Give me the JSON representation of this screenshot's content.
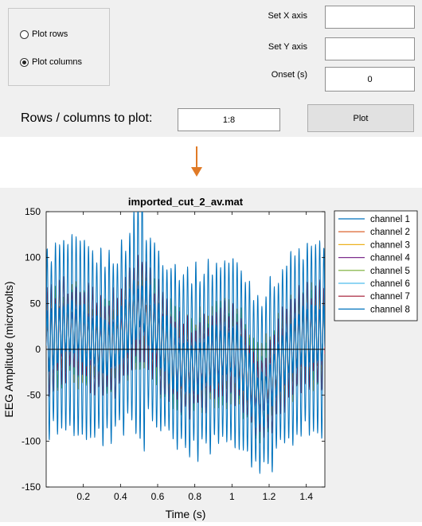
{
  "controls": {
    "radio_rows_label": "Plot rows",
    "radio_columns_label": "Plot columns",
    "selected": "columns",
    "set_x_label": "Set X axis",
    "set_x_value": "",
    "set_y_label": "Set Y axis",
    "set_y_value": "",
    "onset_label": "Onset (s)",
    "onset_value": "0",
    "rows_cols_label": "Rows / columns to plot:",
    "rows_cols_value": "1:8",
    "plot_button": "Plot"
  },
  "colors": {
    "arrow": "#e07a26",
    "panel_bg": "#f0f0f0"
  },
  "chart_data": {
    "type": "line",
    "title": "imported_cut_2_av.mat",
    "xlabel": "Time (s)",
    "ylabel": "EEG Amplitude (microvolts)",
    "xlim": [
      0,
      1.5
    ],
    "ylim": [
      -150,
      150
    ],
    "xticks": [
      0.2,
      0.4,
      0.6,
      0.8,
      1,
      1.2,
      1.4
    ],
    "xtick_labels": [
      "0.2",
      "0.4",
      "0.6",
      "0.8",
      "1",
      "1.2",
      "1.4"
    ],
    "yticks": [
      -150,
      -100,
      -50,
      0,
      50,
      100,
      150
    ],
    "ytick_labels": [
      "-150",
      "-100",
      "-50",
      "0",
      "50",
      "100",
      "150"
    ],
    "legend_position": "top-right",
    "series": [
      {
        "name": "channel 1",
        "color": "#0072bd"
      },
      {
        "name": "channel 2",
        "color": "#d95319"
      },
      {
        "name": "channel 3",
        "color": "#edb120"
      },
      {
        "name": "channel 4",
        "color": "#7e2f8e"
      },
      {
        "name": "channel 5",
        "color": "#77ac30"
      },
      {
        "name": "channel 6",
        "color": "#4dbeee"
      },
      {
        "name": "channel 7",
        "color": "#a2142f"
      },
      {
        "name": "channel 8",
        "color": "#0072bd"
      }
    ],
    "zero_line": 0
  }
}
